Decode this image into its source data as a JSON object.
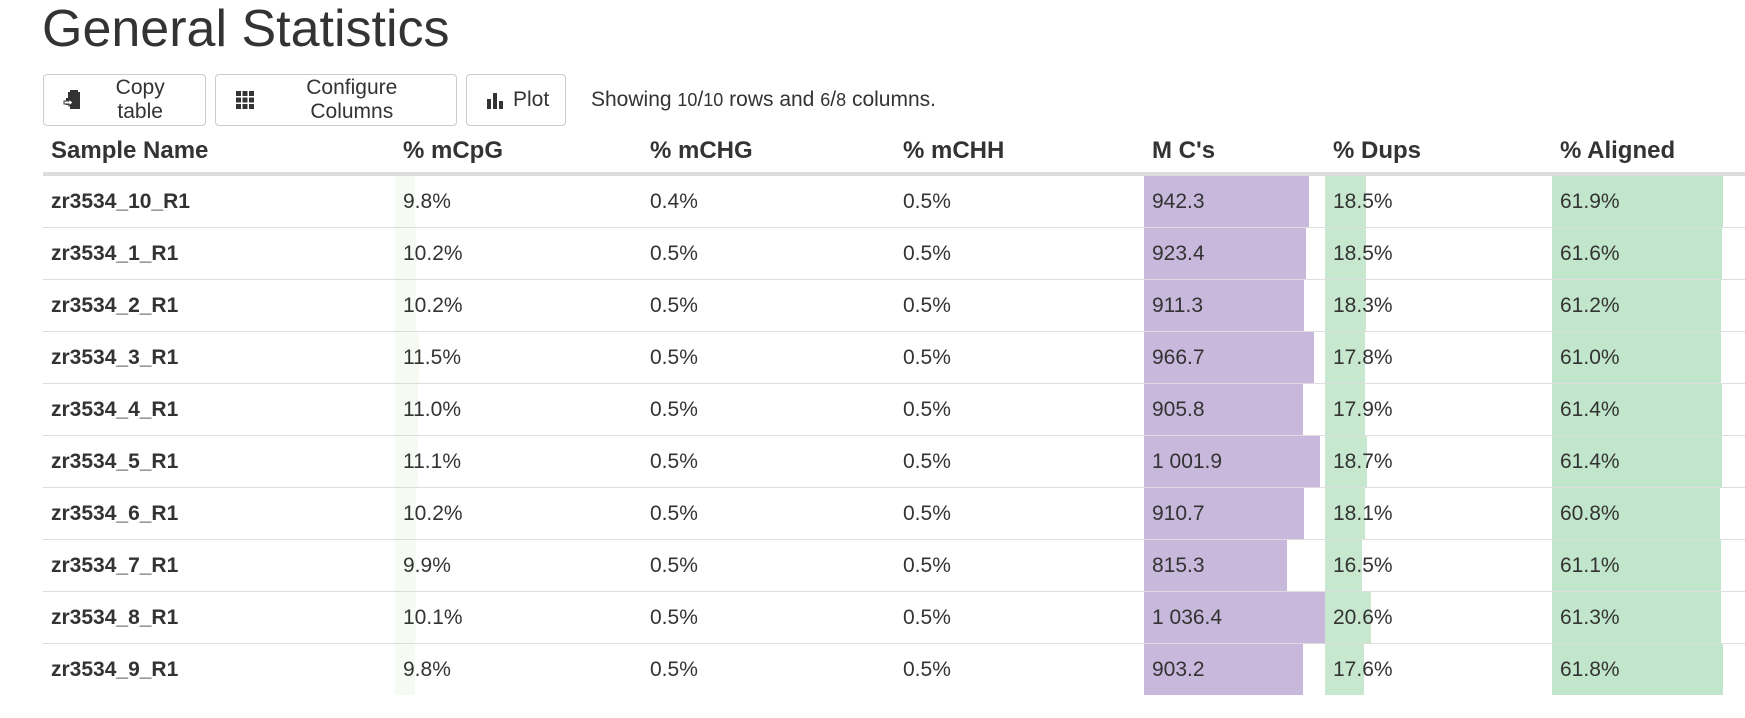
{
  "title": "General Statistics",
  "toolbar": {
    "copy_label": "Copy table",
    "configure_label": "Configure Columns",
    "plot_label": "Plot",
    "showing_prefix": "Showing ",
    "rows_shown": "10",
    "rows_total": "10",
    "rows_word": " rows and ",
    "cols_shown": "6",
    "cols_total": "8",
    "cols_word": " columns."
  },
  "colors": {
    "mcpg_bar": "#f5faf2",
    "mcs_bar": "#c8b8dc",
    "dups_bar": "#c7e8cf",
    "aligned_bar": "#c2e6cb"
  },
  "icons": {
    "copy": "copy-table-icon",
    "configure": "grid-columns-icon",
    "plot": "bar-chart-icon"
  },
  "table": {
    "headers": [
      "Sample Name",
      "% mCpG",
      "% mCHG",
      "% mCHH",
      "M C's",
      "% Dups",
      "% Aligned"
    ],
    "rows": [
      {
        "name": "zr3534_10_R1",
        "mcpg": "9.8%",
        "mchg": "0.4%",
        "mchh": "0.5%",
        "mcs": "942.3",
        "dups": "18.5%",
        "aligned": "61.9%",
        "mcpg_frac": 0.098,
        "mcs_frac": 0.9423,
        "dups_frac": 0.185,
        "aligned_frac": 0.619
      },
      {
        "name": "zr3534_1_R1",
        "mcpg": "10.2%",
        "mchg": "0.5%",
        "mchh": "0.5%",
        "mcs": "923.4",
        "dups": "18.5%",
        "aligned": "61.6%",
        "mcpg_frac": 0.102,
        "mcs_frac": 0.9234,
        "dups_frac": 0.185,
        "aligned_frac": 0.616
      },
      {
        "name": "zr3534_2_R1",
        "mcpg": "10.2%",
        "mchg": "0.5%",
        "mchh": "0.5%",
        "mcs": "911.3",
        "dups": "18.3%",
        "aligned": "61.2%",
        "mcpg_frac": 0.102,
        "mcs_frac": 0.9113,
        "dups_frac": 0.183,
        "aligned_frac": 0.612
      },
      {
        "name": "zr3534_3_R1",
        "mcpg": "11.5%",
        "mchg": "0.5%",
        "mchh": "0.5%",
        "mcs": "966.7",
        "dups": "17.8%",
        "aligned": "61.0%",
        "mcpg_frac": 0.115,
        "mcs_frac": 0.9667,
        "dups_frac": 0.178,
        "aligned_frac": 0.61
      },
      {
        "name": "zr3534_4_R1",
        "mcpg": "11.0%",
        "mchg": "0.5%",
        "mchh": "0.5%",
        "mcs": "905.8",
        "dups": "17.9%",
        "aligned": "61.4%",
        "mcpg_frac": 0.11,
        "mcs_frac": 0.9058,
        "dups_frac": 0.179,
        "aligned_frac": 0.614
      },
      {
        "name": "zr3534_5_R1",
        "mcpg": "11.1%",
        "mchg": "0.5%",
        "mchh": "0.5%",
        "mcs": "1 001.9",
        "dups": "18.7%",
        "aligned": "61.4%",
        "mcpg_frac": 0.111,
        "mcs_frac": 1.0019,
        "dups_frac": 0.187,
        "aligned_frac": 0.614
      },
      {
        "name": "zr3534_6_R1",
        "mcpg": "10.2%",
        "mchg": "0.5%",
        "mchh": "0.5%",
        "mcs": "910.7",
        "dups": "18.1%",
        "aligned": "60.8%",
        "mcpg_frac": 0.102,
        "mcs_frac": 0.9107,
        "dups_frac": 0.181,
        "aligned_frac": 0.608
      },
      {
        "name": "zr3534_7_R1",
        "mcpg": "9.9%",
        "mchg": "0.5%",
        "mchh": "0.5%",
        "mcs": "815.3",
        "dups": "16.5%",
        "aligned": "61.1%",
        "mcpg_frac": 0.099,
        "mcs_frac": 0.8153,
        "dups_frac": 0.165,
        "aligned_frac": 0.611
      },
      {
        "name": "zr3534_8_R1",
        "mcpg": "10.1%",
        "mchg": "0.5%",
        "mchh": "0.5%",
        "mcs": "1 036.4",
        "dups": "20.6%",
        "aligned": "61.3%",
        "mcpg_frac": 0.101,
        "mcs_frac": 1.0364,
        "dups_frac": 0.206,
        "aligned_frac": 0.613
      },
      {
        "name": "zr3534_9_R1",
        "mcpg": "9.8%",
        "mchg": "0.5%",
        "mchh": "0.5%",
        "mcs": "903.2",
        "dups": "17.6%",
        "aligned": "61.8%",
        "mcpg_frac": 0.098,
        "mcs_frac": 0.9032,
        "dups_frac": 0.176,
        "aligned_frac": 0.618
      }
    ]
  }
}
